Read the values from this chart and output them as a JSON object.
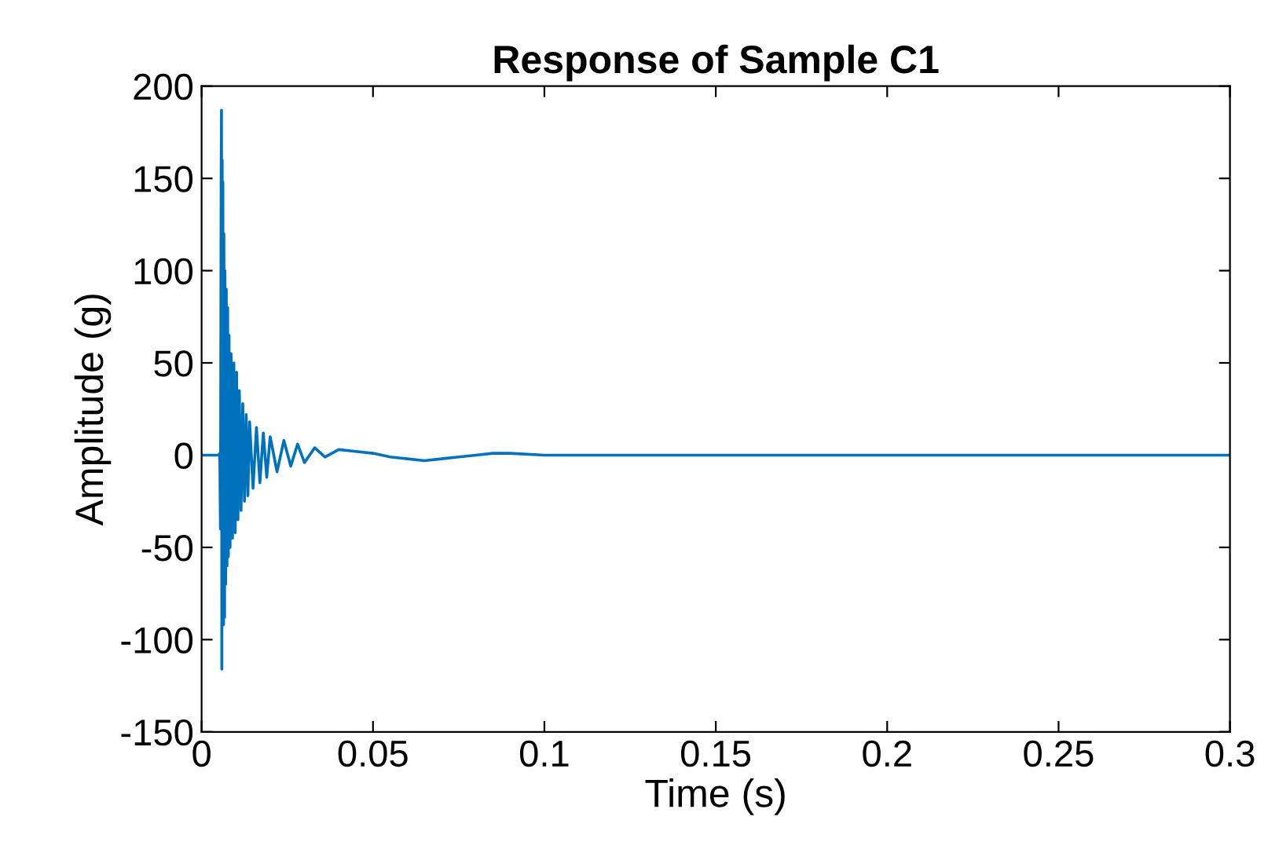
{
  "chart_data": {
    "type": "line",
    "title": "Response of Sample C1",
    "xlabel": "Time (s)",
    "ylabel": "Amplitude (g)",
    "xlim": [
      0,
      0.3
    ],
    "xticks": [
      0,
      0.05,
      0.1,
      0.15,
      0.2,
      0.25,
      0.3
    ],
    "ylim": [
      -150,
      200
    ],
    "yticks": [
      -150,
      -100,
      -50,
      0,
      50,
      100,
      150,
      200
    ],
    "grid": false,
    "marker": "none",
    "line_style": "solid",
    "series": [
      {
        "color": "#0072bd",
        "x": [
          0,
          0.005,
          0.0053,
          0.0055,
          0.0057,
          0.0058,
          0.0059,
          0.006,
          0.0061,
          0.0062,
          0.0064,
          0.0065,
          0.0067,
          0.0068,
          0.007,
          0.0072,
          0.0074,
          0.0076,
          0.0078,
          0.008,
          0.0083,
          0.0086,
          0.009,
          0.0094,
          0.0098,
          0.0102,
          0.0106,
          0.011,
          0.0115,
          0.012,
          0.0125,
          0.013,
          0.0135,
          0.014,
          0.015,
          0.016,
          0.017,
          0.018,
          0.019,
          0.02,
          0.022,
          0.024,
          0.026,
          0.028,
          0.03,
          0.033,
          0.036,
          0.04,
          0.045,
          0.05,
          0.055,
          0.06,
          0.065,
          0.07,
          0.075,
          0.08,
          0.085,
          0.09,
          0.1,
          0.15,
          0.2,
          0.25,
          0.3
        ],
        "values": [
          0,
          0,
          1,
          -40,
          150,
          187,
          -116,
          160,
          -90,
          148,
          -92,
          120,
          -88,
          100,
          -70,
          90,
          -60,
          80,
          -55,
          65,
          -50,
          55,
          -45,
          50,
          -42,
          45,
          -35,
          35,
          -30,
          28,
          -25,
          22,
          -22,
          18,
          -18,
          15,
          -15,
          12,
          -12,
          10,
          -9,
          8,
          -6,
          6,
          -4,
          4,
          -1,
          3,
          2,
          1,
          -1,
          -2,
          -3,
          -2,
          -1,
          0,
          1,
          1,
          0,
          0,
          0,
          0,
          0
        ]
      }
    ]
  }
}
